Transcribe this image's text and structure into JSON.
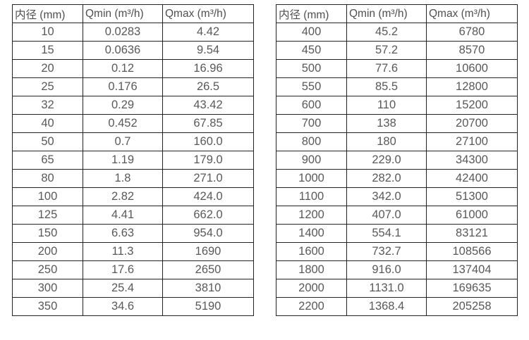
{
  "colors": {
    "background": "#ffffff",
    "border": "#222222",
    "header_text": "#4f4f4f",
    "cell_text": "#595959"
  },
  "tables": [
    {
      "name": "pipe-flow-table-small-diameters",
      "columns": [
        "内径 (mm)",
        "Qmin (m³/h)",
        "Qmax (m³/h)"
      ],
      "rows": [
        [
          "10",
          "0.0283",
          "4.42"
        ],
        [
          "15",
          "0.0636",
          "9.54"
        ],
        [
          "20",
          "0.12",
          "16.96"
        ],
        [
          "25",
          "0.176",
          "26.5"
        ],
        [
          "32",
          "0.29",
          "43.42"
        ],
        [
          "40",
          "0.452",
          "67.85"
        ],
        [
          "50",
          "0.7",
          "160.0"
        ],
        [
          "65",
          "1.19",
          "179.0"
        ],
        [
          "80",
          "1.8",
          "271.0"
        ],
        [
          "100",
          "2.82",
          "424.0"
        ],
        [
          "125",
          "4.41",
          "662.0"
        ],
        [
          "150",
          "6.63",
          "954.0"
        ],
        [
          "200",
          "11.3",
          "1690"
        ],
        [
          "250",
          "17.6",
          "2650"
        ],
        [
          "300",
          "25.4",
          "3810"
        ],
        [
          "350",
          "34.6",
          "5190"
        ]
      ]
    },
    {
      "name": "pipe-flow-table-large-diameters",
      "columns": [
        "内径 (mm)",
        "Qmin (m³/h)",
        "Qmax (m³/h)"
      ],
      "rows": [
        [
          "400",
          "45.2",
          "6780"
        ],
        [
          "450",
          "57.2",
          "8570"
        ],
        [
          "500",
          "77.6",
          "10600"
        ],
        [
          "550",
          "85.5",
          "12800"
        ],
        [
          "600",
          "110",
          "15200"
        ],
        [
          "700",
          "138",
          "20700"
        ],
        [
          "800",
          "180",
          "27100"
        ],
        [
          "900",
          "229.0",
          "34300"
        ],
        [
          "1000",
          "282.0",
          "42400"
        ],
        [
          "1100",
          "342.0",
          "51300"
        ],
        [
          "1200",
          "407.0",
          "61000"
        ],
        [
          "1400",
          "554.1",
          "83121"
        ],
        [
          "1600",
          "732.7",
          "108566"
        ],
        [
          "1800",
          "916.0",
          "137404"
        ],
        [
          "2000",
          "1131.0",
          "169635"
        ],
        [
          "2200",
          "1368.4",
          "205258"
        ]
      ]
    }
  ]
}
